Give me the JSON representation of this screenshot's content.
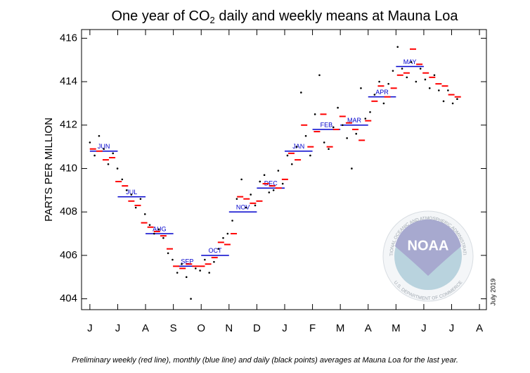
{
  "chart_data": {
    "type": "co2-means",
    "title_parts": [
      "One year of CO",
      "2",
      " daily and weekly means at Mauna Loa"
    ],
    "y_label": "PARTS PER MILLION",
    "caption": "Preliminary weekly (red line), monthly (blue line) and daily (black points) averages at Mauna Loa for the last year.",
    "date_note": "July 2019",
    "logo": {
      "name": "NOAA",
      "ring_top": "NATIONAL OCEANIC AND ATMOSPHERIC ADMINISTRATION",
      "ring_bottom": "U.S. DEPARTMENT OF COMMERCE"
    },
    "xlim": [
      -0.3,
      14.25
    ],
    "xticks": [
      {
        "value": 0,
        "label": "J"
      },
      {
        "value": 1,
        "label": "J"
      },
      {
        "value": 2,
        "label": "A"
      },
      {
        "value": 3,
        "label": "S"
      },
      {
        "value": 4,
        "label": "O"
      },
      {
        "value": 5,
        "label": "N"
      },
      {
        "value": 6,
        "label": "D"
      },
      {
        "value": 7,
        "label": "J"
      },
      {
        "value": 8,
        "label": "F"
      },
      {
        "value": 9,
        "label": "M"
      },
      {
        "value": 10,
        "label": "A"
      },
      {
        "value": 11,
        "label": "M"
      },
      {
        "value": 12,
        "label": "J"
      },
      {
        "value": 13,
        "label": "J"
      },
      {
        "value": 14,
        "label": "A"
      }
    ],
    "ylim": [
      403.5,
      416.4
    ],
    "yticks": [
      404,
      406,
      408,
      410,
      412,
      414,
      416
    ],
    "daily": {
      "color": "#000000",
      "x": [
        0,
        0.17,
        0.33,
        0.5,
        0.66,
        0.83,
        0.99,
        1.16,
        1.32,
        1.49,
        1.65,
        1.82,
        1.98,
        2.15,
        2.31,
        2.48,
        2.64,
        2.81,
        2.97,
        3.14,
        3.3,
        3.47,
        3.63,
        3.8,
        3.96,
        4.13,
        4.29,
        4.46,
        4.62,
        4.79,
        4.95,
        5.12,
        5.28,
        5.45,
        5.61,
        5.78,
        5.94,
        6.11,
        6.27,
        6.44,
        6.6,
        6.77,
        6.93,
        7.1,
        7.26,
        7.43,
        7.59,
        7.76,
        7.92,
        8.09,
        8.25,
        8.42,
        8.58,
        8.75,
        8.91,
        9.08,
        9.24,
        9.41,
        9.57,
        9.74,
        9.9,
        10.07,
        10.23,
        10.4,
        10.56,
        10.73,
        10.89,
        11.06,
        11.22,
        11.39,
        11.55,
        11.72,
        11.88,
        12.05,
        12.21,
        12.38,
        12.54,
        12.71,
        12.87,
        13.04,
        13.2
      ],
      "values": [
        411.2,
        410.6,
        411.5,
        410.9,
        410.2,
        410.7,
        410.0,
        409.5,
        409.0,
        408.8,
        408.2,
        408.6,
        407.9,
        407.4,
        407.0,
        407.2,
        406.8,
        406.1,
        405.8,
        405.2,
        405.6,
        405.0,
        404.0,
        405.4,
        405.3,
        405.8,
        405.2,
        405.7,
        406.3,
        406.8,
        407.0,
        407.6,
        408.6,
        409.5,
        408.2,
        408.8,
        408.3,
        409.4,
        409.7,
        408.9,
        409.0,
        409.9,
        409.3,
        410.6,
        410.2,
        411.0,
        413.5,
        411.5,
        410.6,
        412.5,
        414.3,
        411.2,
        410.9,
        411.9,
        412.8,
        412.0,
        411.4,
        410.0,
        411.6,
        413.7,
        412.3,
        412.6,
        413.4,
        414.0,
        413.0,
        413.9,
        414.5,
        415.6,
        414.6,
        414.2,
        414.9,
        414.0,
        414.6,
        414.1,
        413.7,
        414.3,
        413.6,
        413.1,
        413.6,
        413.0,
        413.2
      ]
    },
    "weekly": {
      "color": "#ff0000",
      "x": [
        0.11,
        0.34,
        0.57,
        0.8,
        1.03,
        1.26,
        1.49,
        1.72,
        1.95,
        2.18,
        2.41,
        2.64,
        2.87,
        3.1,
        3.33,
        3.56,
        3.79,
        4.02,
        4.25,
        4.48,
        4.71,
        4.94,
        5.17,
        5.4,
        5.63,
        5.86,
        6.09,
        6.32,
        6.55,
        6.78,
        7.01,
        7.24,
        7.47,
        7.7,
        7.93,
        8.16,
        8.39,
        8.62,
        8.85,
        9.08,
        9.31,
        9.54,
        9.77,
        10.0,
        10.23,
        10.46,
        10.69,
        10.92,
        11.15,
        11.38,
        11.61,
        11.84,
        12.07,
        12.3,
        12.53,
        12.76,
        12.99,
        13.22
      ],
      "values": [
        410.9,
        410.8,
        410.4,
        410.5,
        409.4,
        409.2,
        408.5,
        408.3,
        407.5,
        407.3,
        407.1,
        406.9,
        406.3,
        405.5,
        405.4,
        405.6,
        405.5,
        405.5,
        405.6,
        405.9,
        406.6,
        406.5,
        407.0,
        408.7,
        408.6,
        408.4,
        408.5,
        409.3,
        409.2,
        409.1,
        409.5,
        410.7,
        410.4,
        412.0,
        411.0,
        411.7,
        412.5,
        411.0,
        411.8,
        412.4,
        412.1,
        411.8,
        411.3,
        412.2,
        413.1,
        413.8,
        413.3,
        413.7,
        414.3,
        414.4,
        415.5,
        414.8,
        414.4,
        414.2,
        413.9,
        413.8,
        413.4,
        413.3
      ]
    },
    "monthly": {
      "color": "#0000cc",
      "labels": [
        "JUN",
        "JUL",
        "AUG",
        "SEP",
        "OCT",
        "NOV",
        "DEC",
        "JAN",
        "FEB",
        "MAR",
        "APR",
        "MAY"
      ],
      "x": [
        0,
        1,
        2,
        3,
        4,
        5,
        6,
        7,
        8,
        9,
        10,
        11
      ],
      "values": [
        410.8,
        408.7,
        407.0,
        405.5,
        406.0,
        408.0,
        409.1,
        410.8,
        411.8,
        412.0,
        413.3,
        414.7
      ]
    }
  }
}
